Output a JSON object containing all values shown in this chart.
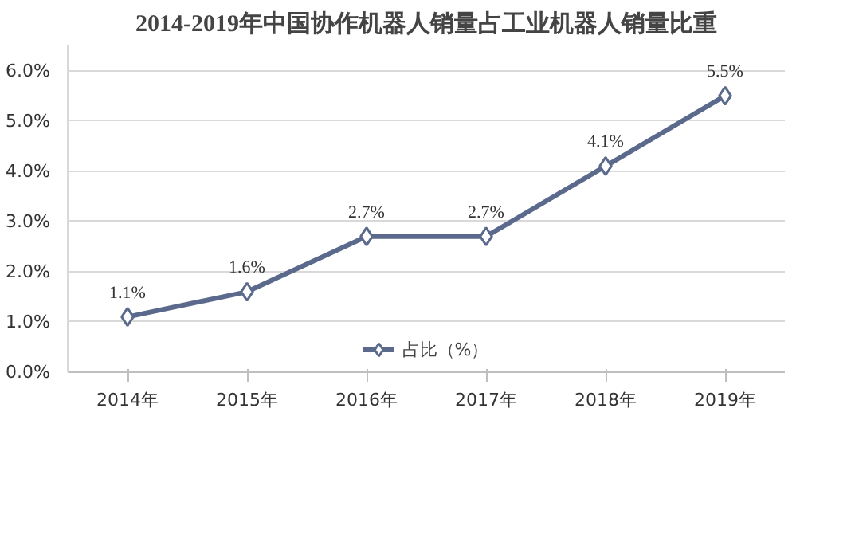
{
  "chart_data": {
    "type": "line",
    "title": "2014-2019年中国协作机器人销量占工业机器人销量比重",
    "categories": [
      "2014年",
      "2015年",
      "2016年",
      "2017年",
      "2018年",
      "2019年"
    ],
    "series": [
      {
        "name": "占比（%）",
        "color": "#5b6a8c",
        "values": [
          1.1,
          1.6,
          2.7,
          2.7,
          4.1,
          5.5
        ],
        "value_labels": [
          "1.1%",
          "1.6%",
          "2.7%",
          "2.7%",
          "4.1%",
          "5.5%"
        ]
      }
    ],
    "ylim": [
      0,
      6.5
    ],
    "yticks": [
      {
        "value": 0,
        "label": "0.0%"
      },
      {
        "value": 1,
        "label": "1.0%"
      },
      {
        "value": 2,
        "label": "2.0%"
      },
      {
        "value": 3,
        "label": "3.0%"
      },
      {
        "value": 4,
        "label": "4.0%"
      },
      {
        "value": 5,
        "label": "5.0%"
      },
      {
        "value": 6,
        "label": "6.0%"
      }
    ],
    "grid": "y",
    "legend": "bottom",
    "marker": "diamond",
    "line_style": "solid"
  }
}
